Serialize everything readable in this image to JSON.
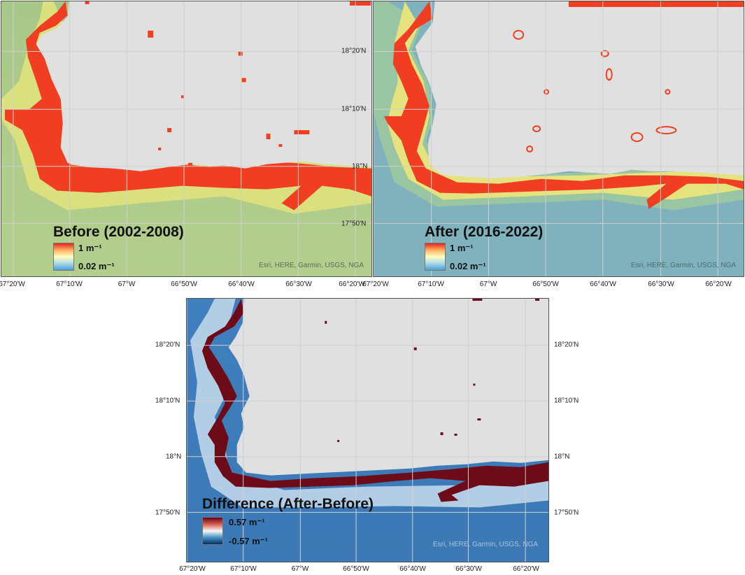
{
  "panels": {
    "before": {
      "title": "Before (2002-2008)",
      "legend_max": "1 m⁻¹",
      "legend_min": "0.02 m⁻¹",
      "attribution": "Esri, HERE, Garmin, USGS, NGA"
    },
    "after": {
      "title": "After (2016-2022)",
      "legend_max": "1 m⁻¹",
      "legend_min": "0.02 m⁻¹",
      "attribution": "Esri, HERE, Garmin, USGS, NGA"
    },
    "difference": {
      "title": "Difference (After-Before)",
      "legend_max": "0.57 m⁻¹",
      "legend_min": "-0.57 m⁻¹",
      "attribution": "Esri, HERE, Garmin, USGS, NGA"
    }
  },
  "lon_ticks": [
    "67°20'W",
    "67°10'W",
    "67°W",
    "66°50'W",
    "66°40'W",
    "66°30'W",
    "66°20'W"
  ],
  "lat_ticks": [
    "18°20'N",
    "18°10'N",
    "18°N",
    "17°50'N"
  ],
  "colors": {
    "land": "#e0e0e0",
    "grid": "#c9c9c9",
    "coast_high": "#f03a20",
    "coast_mid": "#fdb447",
    "nearshore": "#d8e07a",
    "before_sea": "#a9c88a",
    "after_sea": "#79b0be",
    "diff_pos": "#6e0a17",
    "diff_neg": "#2f74b5",
    "diff_sea": "#4a86c0"
  }
}
